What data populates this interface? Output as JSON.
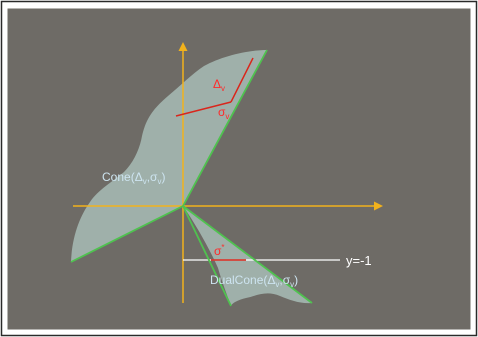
{
  "labels": {
    "delta_v": {
      "main": "Δ",
      "sub": "v"
    },
    "sigma_v": {
      "main": "σ",
      "sub": "v"
    },
    "sigma_star": {
      "main": "σ",
      "sup": "*"
    },
    "cone": {
      "name": "Cone",
      "open": "(",
      "d": "Δ",
      "d_sub": "v",
      "comma": ",",
      "s": "σ",
      "s_sub": "v",
      "close": ")"
    },
    "dual_cone": {
      "name": "DualCone",
      "open": "(",
      "d": "Δ",
      "d_sub": "v",
      "comma": ",",
      "s": "σ",
      "s_sub": "v",
      "close": ")"
    },
    "y_line": "y=-1"
  },
  "colors": {
    "frame_background": "#6e6b66",
    "region_fill": "#9fb0aa",
    "cone_edge": "#4fc24f",
    "axis": "#f2b21c",
    "red_segments": "#d9261c",
    "white_line": "#ffffff",
    "label_blue": "#cde4f0",
    "label_red": "#ff2a2a",
    "outer_border": "#2a2a2a",
    "inner_border": "#ffffff"
  }
}
